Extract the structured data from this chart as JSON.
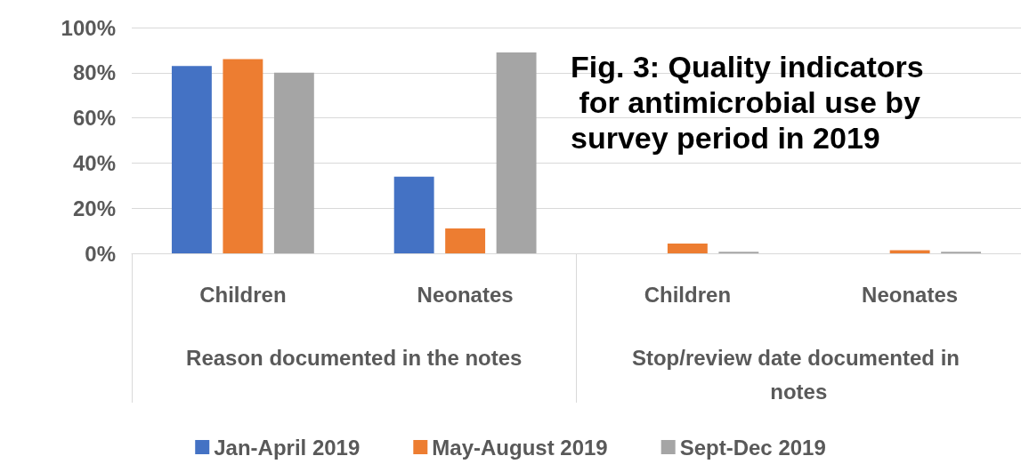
{
  "chart_data": {
    "type": "bar",
    "title": "Fig. 3: Quality indicators for antimicrobial use by survey period in 2019",
    "categories": [
      "Children",
      "Neonates",
      "Children",
      "Neonates"
    ],
    "annotations": [
      "Reason documented in the notes",
      "Stop/review date documented in notes"
    ],
    "series": [
      {
        "name": "Jan-April 2019",
        "color": "#4472c4",
        "values": [
          83,
          34,
          0,
          0
        ]
      },
      {
        "name": "May-August 2019",
        "color": "#ed7d31",
        "values": [
          86,
          11,
          4.3,
          1.4
        ]
      },
      {
        "name": "Sept-Dec 2019",
        "color": "#a5a5a5",
        "values": [
          80,
          89,
          0.7,
          0.7
        ]
      }
    ],
    "ylim": [
      0,
      100
    ],
    "yticks": [
      {
        "value": 0,
        "label": "0%"
      },
      {
        "value": 20,
        "label": "20%"
      },
      {
        "value": 40,
        "label": "40%"
      },
      {
        "value": 60,
        "label": "60%"
      },
      {
        "value": 80,
        "label": "80%"
      },
      {
        "value": 100,
        "label": "100%"
      }
    ],
    "grid": true,
    "legend": "bottom"
  }
}
